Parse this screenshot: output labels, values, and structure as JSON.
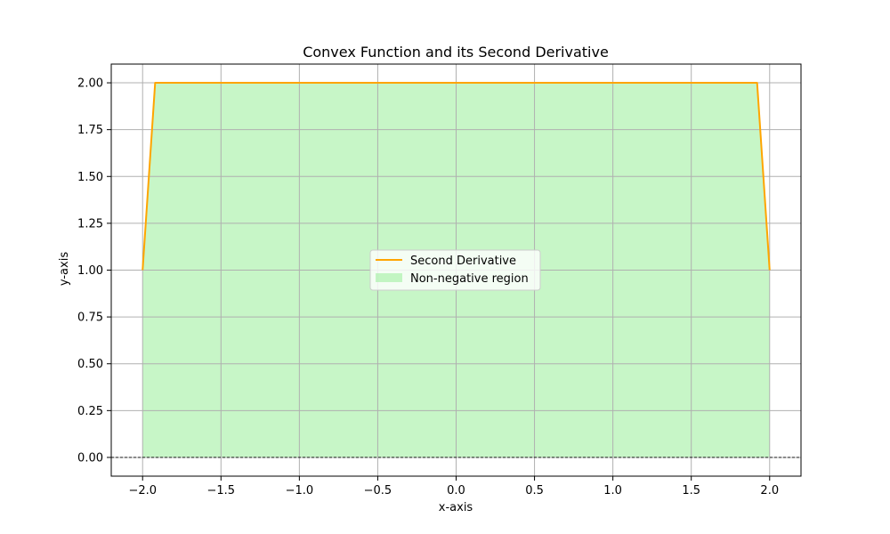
{
  "chart_data": {
    "type": "area",
    "title": "Convex Function and its Second Derivative",
    "xlabel": "x-axis",
    "ylabel": "y-axis",
    "xlim": [
      -2.2,
      2.2
    ],
    "ylim": [
      -0.1,
      2.1
    ],
    "x_ticks": [
      -2.0,
      -1.5,
      -1.0,
      -0.5,
      0.0,
      0.5,
      1.0,
      1.5,
      2.0
    ],
    "x_tick_labels": [
      "−2.0",
      "−1.5",
      "−1.0",
      "−0.5",
      "0.0",
      "0.5",
      "1.0",
      "1.5",
      "2.0"
    ],
    "y_ticks": [
      0.0,
      0.25,
      0.5,
      0.75,
      1.0,
      1.25,
      1.5,
      1.75,
      2.0
    ],
    "y_tick_labels": [
      "0.00",
      "0.25",
      "0.50",
      "0.75",
      "1.00",
      "1.25",
      "1.50",
      "1.75",
      "2.00"
    ],
    "grid": true,
    "legend_position": "center",
    "series": [
      {
        "name": "Second Derivative",
        "kind": "line",
        "color": "#ffa500",
        "x": [
          -2.0,
          -1.92,
          1.92,
          2.0
        ],
        "y": [
          1.0,
          2.0,
          2.0,
          1.0
        ]
      },
      {
        "name": "Non-negative region",
        "kind": "fill",
        "color": "#90ee90",
        "x": [
          -2.0,
          -1.92,
          1.92,
          2.0
        ],
        "y": [
          1.0,
          2.0,
          2.0,
          1.0
        ],
        "baseline": 0.0
      }
    ],
    "reference_lines": [
      {
        "axis": "y",
        "value": 0.0,
        "color": "#000000",
        "style": "dashed"
      }
    ]
  }
}
